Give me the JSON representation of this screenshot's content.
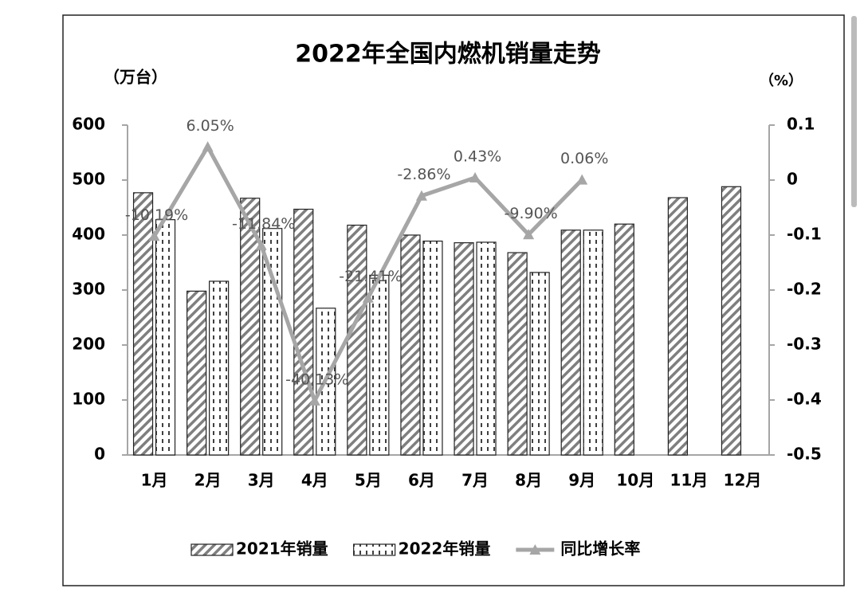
{
  "chart_data": {
    "type": "bar",
    "title": "2022年全国内燃机销量走势",
    "y_label": "（万台）",
    "y2_label": "（%）",
    "categories": [
      "1月",
      "2月",
      "3月",
      "4月",
      "5月",
      "6月",
      "7月",
      "8月",
      "9月",
      "10月",
      "11月",
      "12月"
    ],
    "series": [
      {
        "name": "2021年销量",
        "type": "bar",
        "color": "#7f7f7f",
        "values": [
          477,
          298,
          467,
          447,
          418,
          400,
          386,
          368,
          409,
          420,
          468,
          488
        ]
      },
      {
        "name": "2022年销量",
        "type": "bar",
        "color": "#404040",
        "values": [
          428,
          316,
          412,
          267,
          327,
          389,
          387,
          332,
          409,
          null,
          null,
          null
        ]
      },
      {
        "name": "同比增长率",
        "type": "line",
        "axis": "y2",
        "color": "#a6a6a6",
        "values": [
          -0.1019,
          0.0605,
          -0.1184,
          -0.4013,
          -0.2141,
          -0.0286,
          0.0043,
          -0.099,
          0.0006,
          null,
          null,
          null
        ],
        "value_labels": [
          "-10.19%",
          "6.05%",
          "-11.84%",
          "-40.13%",
          "-21.41%",
          "-2.86%",
          "0.43%",
          "-9.90%",
          "0.06%",
          null,
          null,
          null
        ]
      }
    ],
    "ylim": [
      0,
      600
    ],
    "yticks": [
      0,
      100,
      200,
      300,
      400,
      500,
      600
    ],
    "y2lim": [
      -0.5,
      0.1
    ],
    "y2ticks": [
      -0.5,
      -0.4,
      -0.3,
      -0.2,
      -0.1,
      0,
      0.1
    ],
    "legend": "bottom"
  }
}
